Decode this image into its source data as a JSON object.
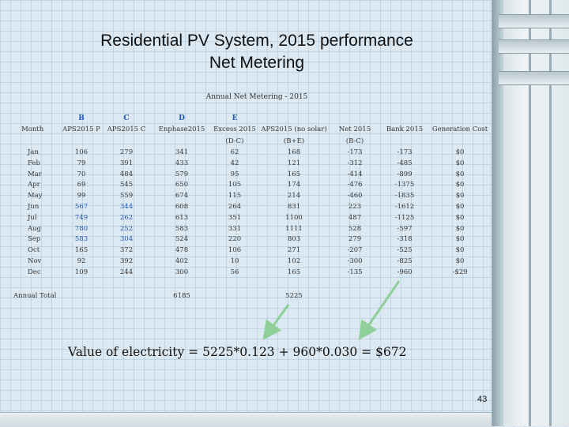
{
  "slide": {
    "title_line1": "Residential PV System, 2015 performance",
    "title_line2": "Net Metering",
    "caption": "Annual Net Metering - 2015",
    "formula": "Value of electricity = 5225*0.123 + 960*0.030 = $672",
    "page_number": "43"
  },
  "table": {
    "letters": [
      "B",
      "C",
      "D",
      "E"
    ],
    "headers": [
      "Month",
      "APS2015 P",
      "APS2015 C",
      "Enphase2015",
      "Excess 2015",
      "APS2015 (no solar)",
      "Net 2015",
      "Bank 2015",
      "Generation Cost"
    ],
    "subheaders": [
      "(D-C)",
      "(B+E)",
      "(B-C)"
    ],
    "rows": [
      {
        "month": "Jan",
        "p": "106",
        "c": "279",
        "d": "341",
        "e": "62",
        "ns": "168",
        "net": "-173",
        "bank": "-173",
        "gen": "$0"
      },
      {
        "month": "Feb",
        "p": "79",
        "c": "391",
        "d": "433",
        "e": "42",
        "ns": "121",
        "net": "-312",
        "bank": "-485",
        "gen": "$0"
      },
      {
        "month": "Mar",
        "p": "70",
        "c": "484",
        "d": "579",
        "e": "95",
        "ns": "165",
        "net": "-414",
        "bank": "-899",
        "gen": "$0"
      },
      {
        "month": "Apr",
        "p": "69",
        "c": "545",
        "d": "650",
        "e": "105",
        "ns": "174",
        "net": "-476",
        "bank": "-1375",
        "gen": "$0"
      },
      {
        "month": "May",
        "p": "99",
        "c": "559",
        "d": "674",
        "e": "115",
        "ns": "214",
        "net": "-460",
        "bank": "-1835",
        "gen": "$0"
      },
      {
        "month": "Jun",
        "p": "567",
        "c": "344",
        "d": "608",
        "e": "264",
        "ns": "831",
        "net": "223",
        "bank": "-1612",
        "gen": "$0"
      },
      {
        "month": "Jul",
        "p": "749",
        "c": "262",
        "d": "613",
        "e": "351",
        "ns": "1100",
        "net": "487",
        "bank": "-1125",
        "gen": "$0"
      },
      {
        "month": "Aug",
        "p": "780",
        "c": "252",
        "d": "583",
        "e": "331",
        "ns": "1111",
        "net": "528",
        "bank": "-597",
        "gen": "$0"
      },
      {
        "month": "Sep",
        "p": "583",
        "c": "304",
        "d": "524",
        "e": "220",
        "ns": "803",
        "net": "279",
        "bank": "-318",
        "gen": "$0"
      },
      {
        "month": "Oct",
        "p": "165",
        "c": "372",
        "d": "478",
        "e": "106",
        "ns": "271",
        "net": "-207",
        "bank": "-525",
        "gen": "$0"
      },
      {
        "month": "Nov",
        "p": "92",
        "c": "392",
        "d": "402",
        "e": "10",
        "ns": "102",
        "net": "-300",
        "bank": "-825",
        "gen": "$0"
      },
      {
        "month": "Dec",
        "p": "109",
        "c": "244",
        "d": "300",
        "e": "56",
        "ns": "165",
        "net": "-135",
        "bank": "-960",
        "gen": "-$29"
      }
    ],
    "highlight_rows": [
      "Jun",
      "Jul",
      "Aug",
      "Sep"
    ],
    "total_label": "Annual Total",
    "total_d": "6185",
    "total_ns": "5225"
  },
  "colors": {
    "highlight": "#1f56b3",
    "arrow": "#8fcf9a"
  }
}
